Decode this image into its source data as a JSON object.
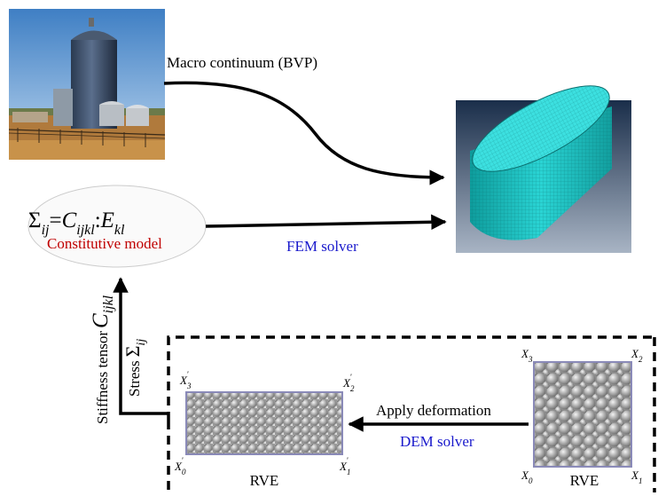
{
  "labels": {
    "macro": "Macro continuum (BVP)",
    "fem": "FEM solver",
    "dem": "DEM solver",
    "apply": "Apply deformation",
    "constitutive": "Constitutive model",
    "rve_left": "RVE",
    "rve_right": "RVE",
    "stress": "Stress",
    "stiffness": "Stiffness tensor"
  },
  "equation": {
    "sigma": "Σ",
    "sub_ij": "ij",
    "equals": "=",
    "c": "C",
    "sub_ijkl": "ijkl",
    "colon": ":",
    "e": "E",
    "sub_kl": "kl"
  },
  "vertical_symbols": {
    "sigma": "Σ",
    "sigma_sub": "ij",
    "c": "C",
    "c_sub": "ijkl"
  },
  "corners_left": {
    "x3": "X",
    "x3_sub": "3",
    "x3_prime": "'",
    "x2": "X",
    "x2_sub": "2",
    "x2_prime": "'",
    "x0": "X",
    "x0_sub": "0",
    "x0_prime": "'",
    "x1": "X",
    "x1_sub": "1",
    "x1_prime": "'"
  },
  "corners_right": {
    "x3": "X",
    "x3_sub": "3",
    "x2": "X",
    "x2_sub": "2",
    "x0": "X",
    "x0_sub": "0",
    "x1": "X",
    "x1_sub": "1"
  },
  "colors": {
    "red": "#c00000",
    "blue": "#1a1acc",
    "teal": "#1fc0c0",
    "ellipse_stroke": "#cccccc"
  }
}
